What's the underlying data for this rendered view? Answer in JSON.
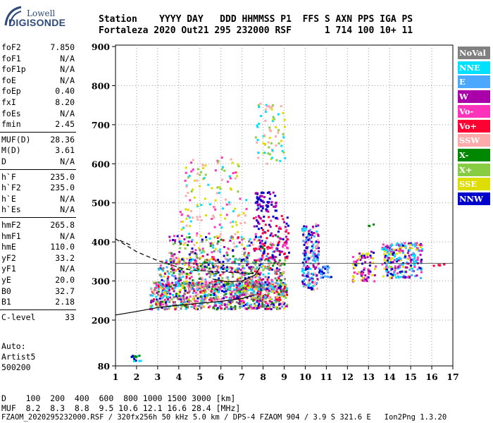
{
  "logo": {
    "top": "Lowell",
    "bottom": "DIGISONDE"
  },
  "header": {
    "line1": "Station    YYYY DAY   DDD HHMMSS P1  FFS S AXN PPS IGA PS",
    "line2": "Fortaleza 2020 Out21 295 232000 RSF      1 714 100 10+ 11"
  },
  "params": [
    {
      "name": "foF2",
      "value": "7.850"
    },
    {
      "name": "foF1",
      "value": "N/A"
    },
    {
      "name": "foF1p",
      "value": "N/A"
    },
    {
      "name": "foE",
      "value": "N/A"
    },
    {
      "name": "foEp",
      "value": "0.40"
    },
    {
      "name": "fxI",
      "value": "8.20"
    },
    {
      "name": "foEs",
      "value": "N/A"
    },
    {
      "name": "fmin",
      "value": "2.45"
    },
    {
      "name": "MUF(D)",
      "value": "28.36"
    },
    {
      "name": "M(D)",
      "value": "3.61"
    },
    {
      "name": "D",
      "value": "N/A"
    },
    {
      "name": "h`F",
      "value": "235.0"
    },
    {
      "name": "h`F2",
      "value": "235.0"
    },
    {
      "name": "h`E",
      "value": "N/A"
    },
    {
      "name": "h`Es",
      "value": "N/A"
    },
    {
      "name": "hmF2",
      "value": "265.8"
    },
    {
      "name": "hmF1",
      "value": "N/A"
    },
    {
      "name": "hmE",
      "value": "110.0"
    },
    {
      "name": "yF2",
      "value": "33.2"
    },
    {
      "name": "yF1",
      "value": "N/A"
    },
    {
      "name": "yE",
      "value": "20.0"
    },
    {
      "name": "B0",
      "value": "32.7"
    },
    {
      "name": "B1",
      "value": "2.18"
    },
    {
      "name": "C-level",
      "value": "33"
    }
  ],
  "auto": {
    "l1": "Auto:",
    "l2": "Artist5",
    "l3": "500200"
  },
  "legend": [
    {
      "label": "NoVal",
      "color": "#808080"
    },
    {
      "label": "NNE",
      "color": "#00e0ff"
    },
    {
      "label": "E",
      "color": "#4aa8ff"
    },
    {
      "label": "W",
      "color": "#aa00aa"
    },
    {
      "label": "Vo-",
      "color": "#ff33bb"
    },
    {
      "label": "Vo+",
      "color": "#ff0033"
    },
    {
      "label": "SSW",
      "color": "#ffaaaa"
    },
    {
      "label": "X-",
      "color": "#008800"
    },
    {
      "label": "X+",
      "color": "#88cc44"
    },
    {
      "label": "SSE",
      "color": "#dddd00"
    },
    {
      "label": "NNW",
      "color": "#0000cc"
    }
  ],
  "bottom": {
    "d": "D    100  200  400  600  800 1000 1500 3000 [km]",
    "muf": "MUF  8.2  8.3  8.8  9.5 10.6 12.1 16.6 28.4 [MHz]",
    "file": "FZAOM_2020295232000.RSF / 320fx256h 50 kHz 5.0 km / DPS-4 FZAOM 904 / 3.9 S 321.6 E   Ion2Png 1.3.20"
  },
  "chart_data": {
    "type": "scatter",
    "title": "",
    "xlabel": "",
    "ylabel": "",
    "x_ticks": [
      "1",
      "2",
      "3",
      "4",
      "5",
      "6",
      "7",
      "8",
      "9",
      "10",
      "11",
      "12",
      "13",
      "14",
      "15",
      "16",
      "17"
    ],
    "y_ticks": [
      "80",
      "200",
      "300",
      "400",
      "500",
      "600",
      "700",
      "800",
      "900"
    ],
    "xlim": [
      1,
      17
    ],
    "ylim": [
      80,
      900
    ],
    "foF2": 7.85,
    "hmF2": 265.8
  }
}
